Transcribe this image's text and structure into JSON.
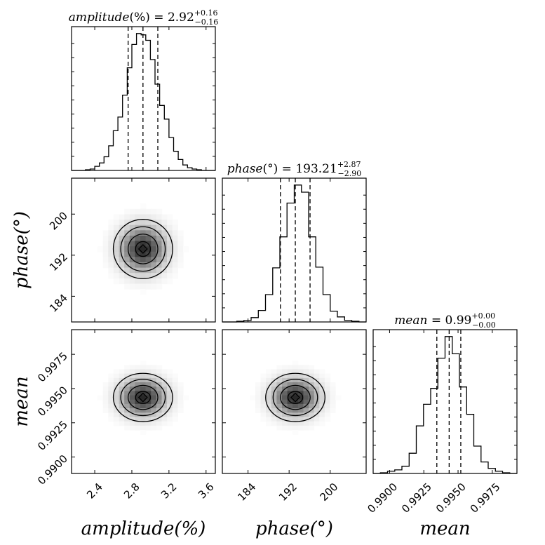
{
  "chart_data": {
    "type": "corner",
    "parameters": [
      {
        "key": "amplitude",
        "label": "amplitude(%)",
        "symbol": "amplitude",
        "unit": "(%)",
        "median": 2.92,
        "plus": 0.16,
        "minus": 0.16,
        "median_text": "2.92",
        "plus_text": "+0.16",
        "minus_text": "−0.16",
        "range": [
          2.15,
          3.7
        ],
        "ticks": [
          2.4,
          2.8,
          3.2,
          3.6
        ],
        "tick_labels": [
          "2.4",
          "2.8",
          "3.2",
          "3.6"
        ]
      },
      {
        "key": "phase",
        "label": "phase(°)",
        "symbol": "phase",
        "unit": "(°)",
        "median": 193.21,
        "plus": 2.87,
        "minus": 2.9,
        "median_text": "193.21",
        "plus_text": "+2.87",
        "minus_text": "−2.90",
        "range": [
          179.0,
          207.0
        ],
        "ticks": [
          184,
          192,
          200
        ],
        "tick_labels": [
          "184",
          "192",
          "200"
        ]
      },
      {
        "key": "mean",
        "label": "mean",
        "symbol": "mean",
        "unit": "",
        "median": 0.99,
        "plus": 0.0,
        "minus": 0.0,
        "median_text": "0.99",
        "plus_text": "+0.00",
        "minus_text": "−0.00",
        "range": [
          0.9888,
          0.9993
        ],
        "ticks": [
          0.99,
          0.9925,
          0.995,
          0.9975
        ],
        "tick_labels": [
          "0.9900",
          "0.9925",
          "0.9950",
          "0.9975"
        ]
      }
    ],
    "marginals": [
      {
        "param": "amplitude",
        "quantiles": [
          2.76,
          2.92,
          3.08
        ],
        "bins": [
          2.15,
          2.2,
          2.25,
          2.3,
          2.35,
          2.4,
          2.45,
          2.5,
          2.55,
          2.6,
          2.65,
          2.7,
          2.75,
          2.8,
          2.85,
          2.9,
          2.95,
          3.0,
          3.05,
          3.1,
          3.15,
          3.2,
          3.25,
          3.3,
          3.35,
          3.4,
          3.45,
          3.5,
          3.55,
          3.6,
          3.65,
          3.7
        ],
        "counts": [
          0,
          0,
          0,
          1,
          2,
          6,
          11,
          20,
          36,
          58,
          78,
          110,
          150,
          184,
          200,
          198,
          190,
          162,
          126,
          95,
          75,
          48,
          28,
          16,
          8,
          4,
          2,
          1,
          0,
          0,
          0
        ]
      },
      {
        "param": "phase",
        "quantiles": [
          190.31,
          193.21,
          196.08
        ],
        "bins": [
          179.0,
          180.4,
          181.8,
          183.2,
          184.6,
          186.0,
          187.4,
          188.8,
          190.2,
          191.6,
          193.0,
          194.4,
          195.8,
          197.2,
          198.6,
          200.0,
          201.4,
          202.8,
          204.2,
          205.6,
          207.0
        ],
        "counts": [
          0,
          0,
          1,
          2,
          6,
          16,
          38,
          75,
          118,
          165,
          190,
          180,
          118,
          76,
          38,
          15,
          7,
          2,
          1,
          0
        ]
      },
      {
        "param": "mean",
        "quantiles": [
          0.99345,
          0.99435,
          0.9952
        ],
        "bins": [
          0.9888,
          0.989325,
          0.98985,
          0.990375,
          0.9909,
          0.991425,
          0.99195,
          0.992475,
          0.993,
          0.993525,
          0.99405,
          0.994575,
          0.9951,
          0.995625,
          0.99615,
          0.996675,
          0.9972,
          0.997725,
          0.99825,
          0.998775,
          0.9993
        ],
        "counts": [
          0,
          1,
          3,
          5,
          10,
          28,
          66,
          96,
          118,
          160,
          190,
          166,
          120,
          82,
          38,
          16,
          7,
          3,
          1,
          0
        ]
      }
    ],
    "joint": [
      {
        "x": "amplitude",
        "y": "phase",
        "center": [
          2.92,
          193.21
        ],
        "sigma": [
          0.16,
          2.89
        ]
      },
      {
        "x": "amplitude",
        "y": "mean",
        "center": [
          2.92,
          0.99435
        ],
        "sigma": [
          0.16,
          0.00088
        ]
      },
      {
        "x": "phase",
        "y": "mean",
        "center": [
          193.21,
          0.99435
        ],
        "sigma": [
          2.89,
          0.00088
        ]
      }
    ],
    "contour_levels_sigma": [
      0.5,
      1.0,
      1.5,
      2.0
    ],
    "grid": false
  }
}
